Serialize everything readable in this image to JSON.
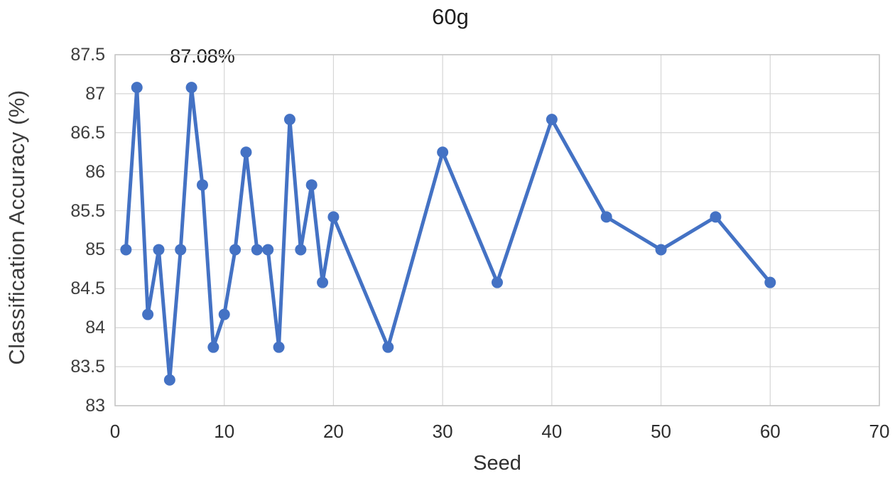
{
  "chart_data": {
    "type": "line",
    "title": "60g",
    "xlabel": "Seed",
    "ylabel": "Classification Accuracy (%)",
    "series_name": "Classification Accuracy vs Seed",
    "x": [
      1,
      2,
      3,
      4,
      5,
      6,
      7,
      8,
      9,
      10,
      11,
      12,
      13,
      14,
      15,
      16,
      17,
      18,
      19,
      20,
      25,
      30,
      35,
      40,
      45,
      50,
      55,
      60
    ],
    "y": [
      85.0,
      87.08,
      84.17,
      85.0,
      83.33,
      85.0,
      87.08,
      85.83,
      83.75,
      84.17,
      85.0,
      86.25,
      85.0,
      85.0,
      83.75,
      86.67,
      85.0,
      85.83,
      84.58,
      85.42,
      83.75,
      86.25,
      84.58,
      86.67,
      85.42,
      85.0,
      85.42,
      84.58
    ],
    "xlim": [
      0,
      70
    ],
    "ylim": [
      83,
      87.5
    ],
    "xticks": [
      0,
      10,
      20,
      30,
      40,
      50,
      60,
      70
    ],
    "yticks": [
      83,
      83.5,
      84,
      84.5,
      85,
      85.5,
      86,
      86.5,
      87,
      87.5
    ],
    "x_tick_labels": [
      "0",
      "10",
      "20",
      "30",
      "40",
      "50",
      "60",
      "70"
    ],
    "y_tick_labels": [
      "83",
      "83.5",
      "84",
      "84.5",
      "85",
      "85.5",
      "86",
      "86.5",
      "87",
      "87.5"
    ],
    "grid": true,
    "legend": false,
    "annotation": {
      "text": "87.08%",
      "x": 7,
      "y": 87.08
    },
    "marker": "circle",
    "marker_radius": 8,
    "line_width": 5,
    "colors": {
      "series": "#4472C4",
      "gridline": "#d6d6d6",
      "plot_border": "#c3c3c3",
      "tick_text": "#3d3d3d",
      "title_text": "#1f1f1f"
    }
  }
}
